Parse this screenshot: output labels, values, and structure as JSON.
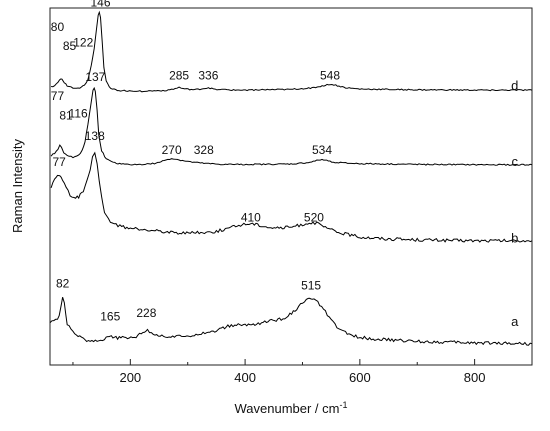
{
  "chart_data": {
    "type": "line",
    "xlabel": "Wavenumber / cm",
    "xlabel_sup": "-1",
    "ylabel": "Raman Intensity",
    "xlim": [
      60,
      900
    ],
    "ylim": [
      0,
      100
    ],
    "xticks": [
      200,
      400,
      600,
      800
    ],
    "xtick_labels": [
      "200",
      "400",
      "600",
      "800"
    ],
    "grid": false,
    "legend": "none",
    "line_color": "#000000",
    "series": [
      {
        "name": "a",
        "label_x": 870,
        "label_y": 9,
        "peak_labels": [
          {
            "text": "82",
            "x": 82,
            "y": 20
          },
          {
            "text": "165",
            "x": 165,
            "y": 10.5
          },
          {
            "text": "228",
            "x": 228,
            "y": 11.5
          },
          {
            "text": "515",
            "x": 515,
            "y": 19.5
          }
        ],
        "points": [
          [
            60,
            10
          ],
          [
            70,
            10.5
          ],
          [
            76,
            12
          ],
          [
            80,
            15.5
          ],
          [
            82,
            17
          ],
          [
            85,
            15.5
          ],
          [
            90,
            9.5
          ],
          [
            100,
            7
          ],
          [
            115,
            5.5
          ],
          [
            130,
            4.5
          ],
          [
            145,
            4.8
          ],
          [
            158,
            5.5
          ],
          [
            163,
            6.3
          ],
          [
            167,
            6.1
          ],
          [
            175,
            5.5
          ],
          [
            195,
            5.5
          ],
          [
            210,
            6
          ],
          [
            222,
            7.3
          ],
          [
            230,
            7.5
          ],
          [
            240,
            6.8
          ],
          [
            255,
            6
          ],
          [
            280,
            5.8
          ],
          [
            305,
            6.3
          ],
          [
            330,
            7
          ],
          [
            350,
            7.6
          ],
          [
            370,
            8.8
          ],
          [
            385,
            9.2
          ],
          [
            400,
            9.2
          ],
          [
            420,
            9.5
          ],
          [
            440,
            10.3
          ],
          [
            460,
            10.8
          ],
          [
            475,
            11.8
          ],
          [
            490,
            14
          ],
          [
            500,
            15.5
          ],
          [
            510,
            16.6
          ],
          [
            515,
            16.8
          ],
          [
            520,
            16.5
          ],
          [
            530,
            15.2
          ],
          [
            540,
            13
          ],
          [
            550,
            10.5
          ],
          [
            560,
            8.6
          ],
          [
            575,
            7
          ],
          [
            590,
            6
          ],
          [
            620,
            5.3
          ],
          [
            650,
            4.9
          ],
          [
            700,
            4.5
          ],
          [
            750,
            4.3
          ],
          [
            800,
            4.1
          ],
          [
            860,
            4
          ],
          [
            900,
            3.8
          ]
        ]
      },
      {
        "name": "b",
        "label_x": 870,
        "label_y": 33,
        "peak_labels": [
          {
            "text": "77",
            "x": 76,
            "y": 55
          },
          {
            "text": "138",
            "x": 138,
            "y": 62.5
          },
          {
            "text": "410",
            "x": 410,
            "y": 39
          },
          {
            "text": "520",
            "x": 520,
            "y": 39
          }
        ],
        "points": [
          [
            62,
            49
          ],
          [
            68,
            51
          ],
          [
            73,
            52
          ],
          [
            77,
            52.2
          ],
          [
            82,
            51
          ],
          [
            88,
            49
          ],
          [
            95,
            46.5
          ],
          [
            102,
            45.8
          ],
          [
            110,
            46
          ],
          [
            118,
            48
          ],
          [
            125,
            51
          ],
          [
            130,
            54
          ],
          [
            134,
            57.5
          ],
          [
            138,
            58.5
          ],
          [
            142,
            56
          ],
          [
            146,
            51
          ],
          [
            150,
            46
          ],
          [
            155,
            42
          ],
          [
            162,
            39.5
          ],
          [
            172,
            38.2
          ],
          [
            185,
            37.5
          ],
          [
            200,
            37
          ],
          [
            240,
            36.5
          ],
          [
            280,
            35.8
          ],
          [
            320,
            35.8
          ],
          [
            350,
            36.2
          ],
          [
            375,
            37.3
          ],
          [
            395,
            38.2
          ],
          [
            410,
            38.5
          ],
          [
            425,
            38
          ],
          [
            445,
            37.3
          ],
          [
            465,
            37.2
          ],
          [
            485,
            37.6
          ],
          [
            500,
            38.2
          ],
          [
            515,
            38.8
          ],
          [
            525,
            38.5
          ],
          [
            540,
            37.3
          ],
          [
            560,
            36
          ],
          [
            580,
            35.3
          ],
          [
            600,
            34.6
          ],
          [
            650,
            34
          ],
          [
            700,
            33.8
          ],
          [
            800,
            33.5
          ],
          [
            900,
            33.5
          ]
        ]
      },
      {
        "name": "c",
        "label_x": 870,
        "label_y": 55,
        "peak_labels": [
          {
            "text": "77",
            "x": 73,
            "y": 74
          },
          {
            "text": "81",
            "x": 88,
            "y": 68.5
          },
          {
            "text": "116",
            "x": 109,
            "y": 69
          },
          {
            "text": "137",
            "x": 139,
            "y": 79.5
          },
          {
            "text": "270",
            "x": 272,
            "y": 58.5
          },
          {
            "text": "328",
            "x": 328,
            "y": 58.5
          },
          {
            "text": "534",
            "x": 534,
            "y": 58.5
          }
        ],
        "points": [
          [
            62,
            58
          ],
          [
            68,
            58.8
          ],
          [
            74,
            59.8
          ],
          [
            77,
            61
          ],
          [
            80,
            60.6
          ],
          [
            84,
            59
          ],
          [
            90,
            58
          ],
          [
            100,
            57.6
          ],
          [
            110,
            58.2
          ],
          [
            116,
            59.4
          ],
          [
            121,
            62
          ],
          [
            126,
            67
          ],
          [
            131,
            72.5
          ],
          [
            135,
            76.8
          ],
          [
            137,
            77.5
          ],
          [
            139,
            76.5
          ],
          [
            142,
            71
          ],
          [
            145,
            64
          ],
          [
            150,
            59.5
          ],
          [
            158,
            57
          ],
          [
            170,
            56
          ],
          [
            190,
            55.5
          ],
          [
            220,
            55.5
          ],
          [
            245,
            55.8
          ],
          [
            262,
            56.8
          ],
          [
            272,
            57.2
          ],
          [
            285,
            56.8
          ],
          [
            305,
            56.2
          ],
          [
            328,
            55.8
          ],
          [
            360,
            55.5
          ],
          [
            420,
            55.5
          ],
          [
            480,
            55.6
          ],
          [
            510,
            56
          ],
          [
            525,
            56.6
          ],
          [
            534,
            56.9
          ],
          [
            545,
            56.5
          ],
          [
            560,
            56
          ],
          [
            600,
            55.7
          ],
          [
            700,
            55.5
          ],
          [
            800,
            55.4
          ],
          [
            900,
            55.4
          ]
        ]
      },
      {
        "name": "d",
        "label_x": 870,
        "label_y": 77,
        "peak_labels": [
          {
            "text": "80",
            "x": 73,
            "y": 94
          },
          {
            "text": "85",
            "x": 94,
            "y": 88.5
          },
          {
            "text": "122",
            "x": 118,
            "y": 89.5
          },
          {
            "text": "146",
            "x": 148,
            "y": 101
          },
          {
            "text": "285",
            "x": 285,
            "y": 80
          },
          {
            "text": "336",
            "x": 336,
            "y": 80
          },
          {
            "text": "548",
            "x": 548,
            "y": 80
          }
        ],
        "points": [
          [
            62,
            77.8
          ],
          [
            68,
            78.3
          ],
          [
            74,
            79.2
          ],
          [
            79,
            80.2
          ],
          [
            81,
            80
          ],
          [
            85,
            79
          ],
          [
            90,
            78.2
          ],
          [
            100,
            77.6
          ],
          [
            112,
            77.6
          ],
          [
            120,
            78.3
          ],
          [
            126,
            80
          ],
          [
            132,
            84
          ],
          [
            137,
            89
          ],
          [
            141,
            94.5
          ],
          [
            144,
            98.5
          ],
          [
            146,
            99.5
          ],
          [
            148,
            98
          ],
          [
            151,
            91
          ],
          [
            154,
            83.5
          ],
          [
            158,
            79.5
          ],
          [
            166,
            77.3
          ],
          [
            180,
            76.8
          ],
          [
            220,
            76.6
          ],
          [
            260,
            76.8
          ],
          [
            278,
            77.3
          ],
          [
            285,
            77.7
          ],
          [
            292,
            77.3
          ],
          [
            312,
            77
          ],
          [
            330,
            77.4
          ],
          [
            336,
            77.6
          ],
          [
            345,
            77.2
          ],
          [
            380,
            76.9
          ],
          [
            430,
            77
          ],
          [
            480,
            77.1
          ],
          [
            520,
            77.6
          ],
          [
            540,
            78.3
          ],
          [
            548,
            78.6
          ],
          [
            558,
            78.3
          ],
          [
            575,
            77.6
          ],
          [
            600,
            77.2
          ],
          [
            700,
            77
          ],
          [
            800,
            76.9
          ],
          [
            900,
            76.9
          ]
        ]
      }
    ]
  }
}
